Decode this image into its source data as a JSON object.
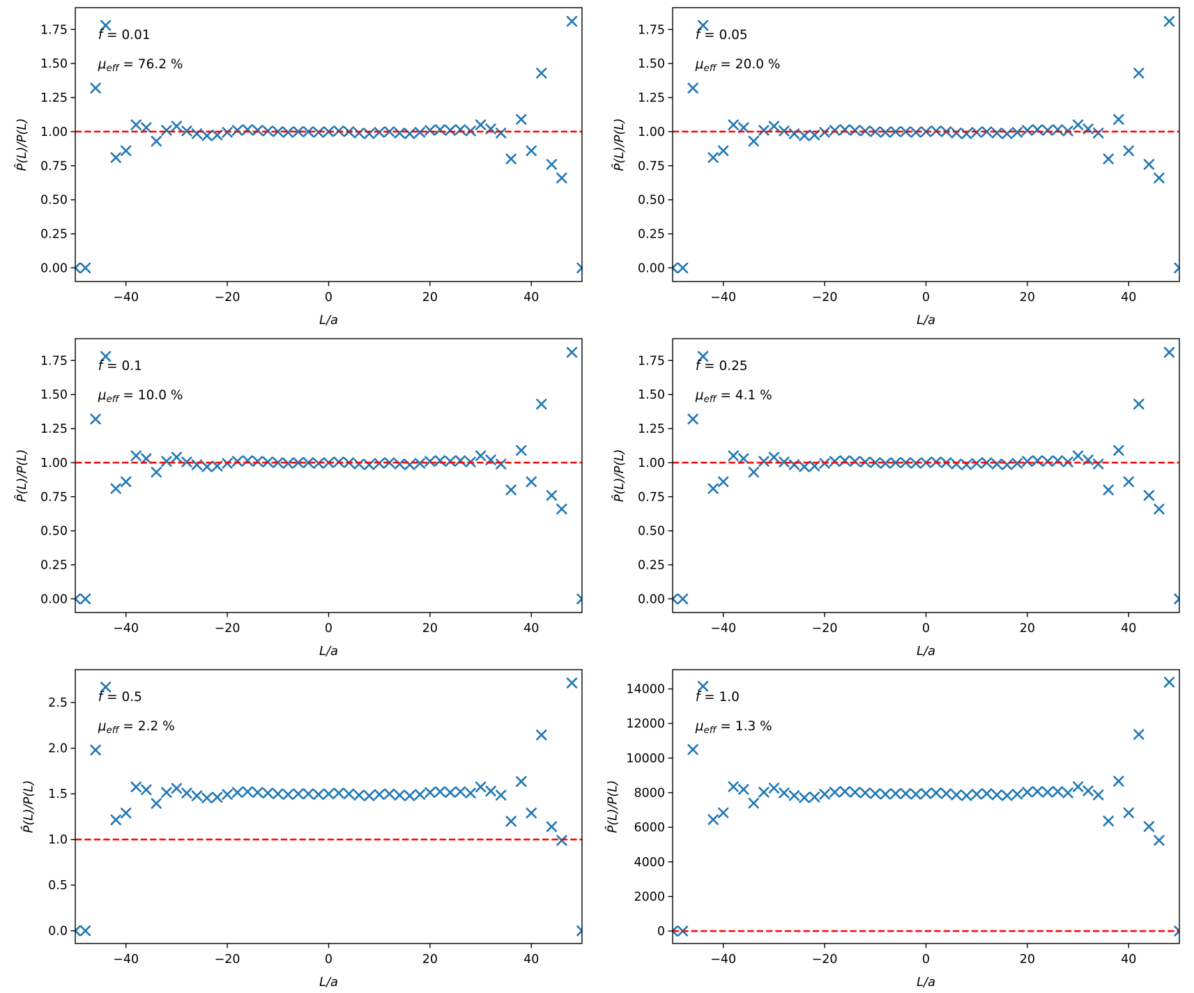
{
  "figure": {
    "background_color": "#ffffff",
    "rows": 3,
    "cols": 2
  },
  "chart_data": {
    "type": "scatter",
    "grid": "2 columns x 3 rows",
    "shared": {
      "xlabel": "L/a",
      "ylabel": "P̂(L)/P(L)",
      "xlim": [
        -50,
        50
      ],
      "x_tick_values": [
        -40,
        -20,
        0,
        20,
        40
      ],
      "x_tick_labels": [
        "−40",
        "−20",
        "0",
        "20",
        "40"
      ],
      "marker": "x",
      "marker_color": "#1f77b4",
      "hline_color": "#ff0000",
      "hline_style": "dashed",
      "legend": "none",
      "grid_lines": false,
      "x": [
        -50,
        -48,
        -46,
        -44,
        -42,
        -40,
        -38,
        -36,
        -34,
        -32,
        -30,
        -28,
        -26,
        -24,
        -22,
        -20,
        -18,
        -16,
        -14,
        -12,
        -10,
        -8,
        -6,
        -4,
        -2,
        0,
        2,
        4,
        6,
        8,
        10,
        12,
        14,
        16,
        18,
        20,
        22,
        24,
        26,
        28,
        30,
        32,
        34,
        36,
        38,
        40,
        42,
        44,
        46,
        48,
        50
      ]
    },
    "subplots": [
      {
        "name": "f = 0.01",
        "f_symbol": "f",
        "f_text": " = 0.01",
        "mu_symbol": "μ",
        "mu_sub": "eff",
        "mu_text": " = 76.2 %",
        "hline": 1.0,
        "ylim": [
          -0.1,
          1.91
        ],
        "y_tick_values": [
          0,
          0.25,
          0.5,
          0.75,
          1.0,
          1.25,
          1.5,
          1.75
        ],
        "y_tick_labels": [
          "0.00",
          "0.25",
          "0.50",
          "0.75",
          "1.00",
          "1.25",
          "1.50",
          "1.75"
        ],
        "y": [
          0.0,
          0.0,
          1.32,
          1.78,
          0.81,
          0.86,
          1.05,
          1.03,
          0.93,
          1.01,
          1.04,
          1.005,
          0.985,
          0.97,
          0.975,
          0.995,
          1.01,
          1.015,
          1.01,
          1.005,
          1.0,
          0.995,
          1.0,
          1.0,
          0.995,
          1.0,
          1.005,
          1.0,
          0.99,
          0.985,
          0.995,
          1.0,
          0.99,
          0.985,
          0.995,
          1.01,
          1.015,
          1.01,
          1.015,
          1.005,
          1.05,
          1.02,
          0.99,
          0.8,
          1.09,
          0.86,
          1.43,
          0.76,
          0.66,
          1.81,
          0.0
        ]
      },
      {
        "name": "f = 0.05",
        "f_symbol": "f",
        "f_text": " = 0.05",
        "mu_symbol": "μ",
        "mu_sub": "eff",
        "mu_text": " = 20.0 %",
        "hline": 1.0,
        "ylim": [
          -0.1,
          1.91
        ],
        "y_tick_values": [
          0,
          0.25,
          0.5,
          0.75,
          1.0,
          1.25,
          1.5,
          1.75
        ],
        "y_tick_labels": [
          "0.00",
          "0.25",
          "0.50",
          "0.75",
          "1.00",
          "1.25",
          "1.50",
          "1.75"
        ],
        "y": [
          0.0,
          0.0,
          1.32,
          1.78,
          0.81,
          0.86,
          1.05,
          1.03,
          0.93,
          1.01,
          1.04,
          1.005,
          0.985,
          0.97,
          0.975,
          0.995,
          1.01,
          1.015,
          1.01,
          1.005,
          1.0,
          0.995,
          1.0,
          1.0,
          0.995,
          1.0,
          1.005,
          1.0,
          0.99,
          0.985,
          0.995,
          1.0,
          0.99,
          0.985,
          0.995,
          1.01,
          1.015,
          1.01,
          1.015,
          1.005,
          1.05,
          1.02,
          0.99,
          0.8,
          1.09,
          0.86,
          1.43,
          0.76,
          0.66,
          1.81,
          0.0
        ]
      },
      {
        "name": "f = 0.1",
        "f_symbol": "f",
        "f_text": " = 0.1",
        "mu_symbol": "μ",
        "mu_sub": "eff",
        "mu_text": " = 10.0 %",
        "hline": 1.0,
        "ylim": [
          -0.1,
          1.91
        ],
        "y_tick_values": [
          0,
          0.25,
          0.5,
          0.75,
          1.0,
          1.25,
          1.5,
          1.75
        ],
        "y_tick_labels": [
          "0.00",
          "0.25",
          "0.50",
          "0.75",
          "1.00",
          "1.25",
          "1.50",
          "1.75"
        ],
        "y": [
          0.0,
          0.0,
          1.32,
          1.78,
          0.81,
          0.86,
          1.05,
          1.03,
          0.93,
          1.01,
          1.04,
          1.005,
          0.985,
          0.97,
          0.975,
          0.995,
          1.01,
          1.015,
          1.01,
          1.005,
          1.0,
          0.995,
          1.0,
          1.0,
          0.995,
          1.0,
          1.005,
          1.0,
          0.99,
          0.985,
          0.995,
          1.0,
          0.99,
          0.985,
          0.995,
          1.01,
          1.015,
          1.01,
          1.015,
          1.005,
          1.05,
          1.02,
          0.99,
          0.8,
          1.09,
          0.86,
          1.43,
          0.76,
          0.66,
          1.81,
          0.0
        ]
      },
      {
        "name": "f = 0.25",
        "f_symbol": "f",
        "f_text": " = 0.25",
        "mu_symbol": "μ",
        "mu_sub": "eff",
        "mu_text": " = 4.1 %",
        "hline": 1.0,
        "ylim": [
          -0.1,
          1.91
        ],
        "y_tick_values": [
          0,
          0.25,
          0.5,
          0.75,
          1.0,
          1.25,
          1.5,
          1.75
        ],
        "y_tick_labels": [
          "0.00",
          "0.25",
          "0.50",
          "0.75",
          "1.00",
          "1.25",
          "1.50",
          "1.75"
        ],
        "y": [
          0.0,
          0.0,
          1.32,
          1.78,
          0.81,
          0.86,
          1.05,
          1.03,
          0.93,
          1.01,
          1.04,
          1.005,
          0.985,
          0.97,
          0.975,
          0.995,
          1.01,
          1.015,
          1.01,
          1.005,
          1.0,
          0.995,
          1.0,
          1.0,
          0.995,
          1.0,
          1.005,
          1.0,
          0.99,
          0.985,
          0.995,
          1.0,
          0.99,
          0.985,
          0.995,
          1.01,
          1.015,
          1.01,
          1.015,
          1.005,
          1.05,
          1.02,
          0.99,
          0.8,
          1.09,
          0.86,
          1.43,
          0.76,
          0.66,
          1.81,
          0.0
        ]
      },
      {
        "name": "f = 0.5",
        "f_symbol": "f",
        "f_text": " = 0.5",
        "mu_symbol": "μ",
        "mu_sub": "eff",
        "mu_text": " = 2.2 %",
        "hline": 1.0,
        "ylim": [
          -0.14,
          2.86
        ],
        "y_tick_values": [
          0,
          0.5,
          1.0,
          1.5,
          2.0,
          2.5
        ],
        "y_tick_labels": [
          "0.0",
          "0.5",
          "1.0",
          "1.5",
          "2.0",
          "2.5"
        ],
        "y": [
          0.0,
          0.0,
          1.98,
          2.67,
          1.215,
          1.29,
          1.575,
          1.545,
          1.395,
          1.515,
          1.56,
          1.508,
          1.478,
          1.455,
          1.463,
          1.493,
          1.515,
          1.523,
          1.515,
          1.508,
          1.5,
          1.493,
          1.5,
          1.5,
          1.493,
          1.5,
          1.508,
          1.5,
          1.485,
          1.478,
          1.493,
          1.5,
          1.485,
          1.478,
          1.493,
          1.515,
          1.523,
          1.515,
          1.523,
          1.508,
          1.575,
          1.53,
          1.485,
          1.2,
          1.635,
          1.29,
          2.145,
          1.14,
          0.99,
          2.715,
          0.0
        ]
      },
      {
        "name": "f = 1.0",
        "f_symbol": "f",
        "f_text": " = 1.0",
        "mu_symbol": "μ",
        "mu_sub": "eff",
        "mu_text": " = 1.3 %",
        "hline": 1.0,
        "ylim": [
          -720,
          15110
        ],
        "y_tick_values": [
          0,
          2000,
          4000,
          6000,
          8000,
          10000,
          12000,
          14000
        ],
        "y_tick_labels": [
          "0",
          "2000",
          "4000",
          "6000",
          "8000",
          "10000",
          "12000",
          "14000"
        ],
        "y": [
          0,
          0,
          10494,
          14151,
          6440,
          6837,
          8348,
          8189,
          7394,
          8030,
          8268,
          7990,
          7831,
          7712,
          7751,
          7910,
          8030,
          8069,
          8030,
          7990,
          7950,
          7910,
          7950,
          7950,
          7910,
          7950,
          7990,
          7950,
          7871,
          7831,
          7910,
          7950,
          7871,
          7831,
          7910,
          8030,
          8069,
          8030,
          8069,
          7990,
          8348,
          8109,
          7871,
          6360,
          8666,
          6837,
          11369,
          6042,
          5247,
          14390,
          0
        ]
      }
    ]
  }
}
